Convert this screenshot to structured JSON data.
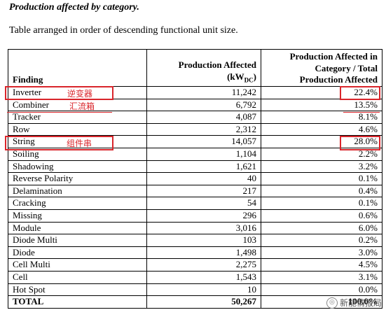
{
  "title": "Production affected by category.",
  "subtitle": "Table arranged in order of descending functional unit size.",
  "table": {
    "headers": {
      "finding": "Finding",
      "production": "Production Affected (kW_DC)",
      "share": "Production Affected in Category / Total Production Affected"
    },
    "rows": [
      {
        "finding": "Inverter",
        "production": "11,242",
        "share": "22.4%"
      },
      {
        "finding": "Combiner",
        "production": "6,792",
        "share": "13.5%"
      },
      {
        "finding": "Tracker",
        "production": "4,087",
        "share": "8.1%"
      },
      {
        "finding": "Row",
        "production": "2,312",
        "share": "4.6%"
      },
      {
        "finding": "String",
        "production": "14,057",
        "share": "28.0%"
      },
      {
        "finding": "Soiling",
        "production": "1,104",
        "share": "2.2%"
      },
      {
        "finding": "Shadowing",
        "production": "1,621",
        "share": "3.2%"
      },
      {
        "finding": "Reverse Polarity",
        "production": "40",
        "share": "0.1%"
      },
      {
        "finding": "Delamination",
        "production": "217",
        "share": "0.4%"
      },
      {
        "finding": "Cracking",
        "production": "54",
        "share": "0.1%"
      },
      {
        "finding": "Missing",
        "production": "296",
        "share": "0.6%"
      },
      {
        "finding": "Module",
        "production": "3,016",
        "share": "6.0%"
      },
      {
        "finding": "Diode Multi",
        "production": "103",
        "share": "0.2%"
      },
      {
        "finding": "Diode",
        "production": "1,498",
        "share": "3.0%"
      },
      {
        "finding": "Cell Multi",
        "production": "2,275",
        "share": "4.5%"
      },
      {
        "finding": "Cell",
        "production": "1,543",
        "share": "3.1%"
      },
      {
        "finding": "Hot Spot",
        "production": "10",
        "share": "0.0%"
      }
    ],
    "total": {
      "finding": "TOTAL",
      "production": "50,267",
      "share": "100.0%"
    }
  },
  "annotations": {
    "inverter_cn": "逆变器",
    "combiner_cn": "汇流箱",
    "string_cn": "组件串",
    "color": "#d9252b"
  },
  "watermark": {
    "text": "新能情报局",
    "icon": "wechat-icon"
  }
}
